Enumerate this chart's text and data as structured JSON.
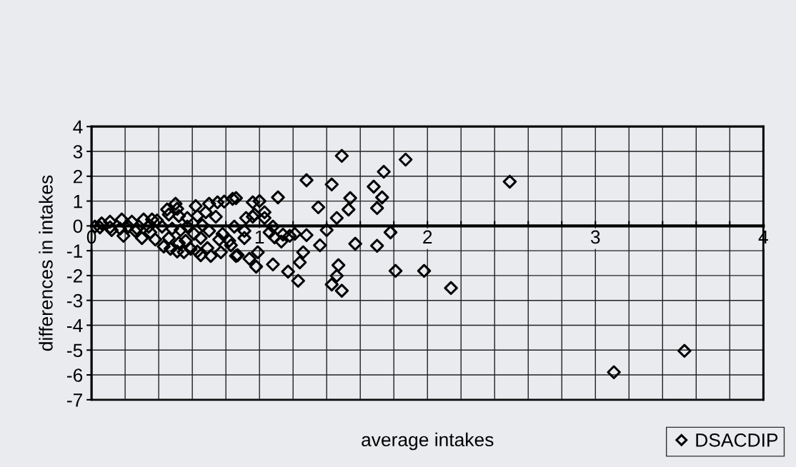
{
  "chart_data": {
    "type": "scatter",
    "xlabel": "average intakes",
    "ylabel": "differences in intakes",
    "xlim": [
      0,
      4
    ],
    "xticks": [
      0,
      {
        "value": 0.2,
        "label": null
      },
      {
        "value": 0.4,
        "label": null
      },
      {
        "value": 0.6,
        "label": null
      },
      {
        "value": 0.8,
        "label": null
      },
      1,
      {
        "value": 1.2,
        "label": null
      },
      {
        "value": 1.4,
        "label": null
      },
      {
        "value": 1.6,
        "label": null
      },
      {
        "value": 1.8,
        "label": null
      },
      2,
      {
        "value": 2.2,
        "label": null
      },
      {
        "value": 2.4,
        "label": null
      },
      {
        "value": 2.6,
        "label": null
      },
      {
        "value": 2.8,
        "label": null
      },
      3,
      {
        "value": 3.2,
        "label": null
      },
      {
        "value": 3.4,
        "label": null
      },
      {
        "value": 3.6,
        "label": null
      },
      {
        "value": 3.8,
        "label": null
      },
      4
    ],
    "ylim": [
      -7,
      4
    ],
    "yticks": [
      -7,
      -6,
      -5,
      -4,
      -3,
      -2,
      -1,
      0,
      1,
      2,
      3,
      4
    ],
    "grid": true,
    "legend": "bottom right",
    "marker": "diamond",
    "series": [
      {
        "name": "DSACDIP",
        "color": "#000000",
        "x": [
          2.49,
          3.11,
          3.53,
          1.98,
          2.14,
          1.87,
          1.49,
          1.74,
          1.28,
          1.43,
          1.68,
          1.11,
          1.54,
          1.73,
          0.96,
          1.0,
          1.35,
          1.53,
          1.7,
          1.03,
          0.92,
          0.96,
          1.03,
          1.46,
          1.08,
          1.4,
          1.78,
          0.91,
          1.06,
          1.09,
          1.14,
          1.13,
          1.18,
          1.21,
          1.28,
          0.91,
          1.36,
          1.57,
          1.7,
          0.87,
          0.94,
          0.99,
          0.98,
          1.08,
          1.26,
          1.24,
          1.17,
          1.23,
          1.47,
          1.46,
          1.43,
          1.49,
          1.81,
          0.86,
          0.02,
          0.06,
          0.11,
          0.18,
          0.24,
          0.31,
          0.36,
          0.39,
          0.45,
          0.5,
          0.51,
          0.46,
          0.52,
          0.62,
          0.7,
          0.75,
          0.79,
          0.84,
          0.68,
          0.74,
          0.63,
          0.57,
          0.97,
          0.57,
          0.66,
          0.7,
          0.85,
          0.53,
          0.48,
          0.42,
          0.34,
          0.27,
          0.22,
          0.17,
          0.11,
          0.05,
          0.12,
          0.19,
          0.26,
          0.3,
          0.38,
          0.43,
          0.47,
          0.52,
          0.51,
          0.55,
          0.59,
          0.56,
          0.63,
          0.65,
          0.69,
          0.71,
          0.77,
          0.78,
          0.76,
          0.82,
          0.86,
          0.83,
          0.65,
          0.61,
          0.46,
          0.35
        ],
        "values": [
          1.78,
          -5.89,
          -5.03,
          -1.81,
          -2.5,
          2.67,
          2.82,
          2.18,
          1.84,
          1.67,
          1.58,
          1.15,
          1.12,
          1.15,
          0.95,
          1.0,
          0.75,
          0.66,
          0.72,
          0.55,
          0.32,
          0.37,
          0.32,
          0.32,
          -0.03,
          -0.17,
          -0.26,
          -0.2,
          -0.26,
          -0.46,
          -0.35,
          -0.63,
          -0.4,
          -0.32,
          -0.37,
          -0.49,
          -0.78,
          -0.72,
          -0.8,
          -1.18,
          -1.32,
          -1.06,
          -1.64,
          -1.55,
          -1.06,
          -1.47,
          -1.84,
          -2.21,
          -1.58,
          -2.01,
          -2.36,
          -2.61,
          -1.81,
          1.12,
          -0.03,
          0.1,
          0.17,
          0.26,
          0.17,
          0.26,
          0.26,
          0.22,
          0.66,
          0.89,
          0.69,
          0.46,
          0.4,
          0.8,
          0.89,
          0.95,
          0.98,
          1.09,
          0.55,
          0.37,
          0.4,
          0.32,
          0.46,
          -0.03,
          0.03,
          -0.2,
          -0.03,
          -0.17,
          -0.11,
          -0.03,
          -0.03,
          -0.11,
          -0.03,
          -0.11,
          -0.06,
          -0.06,
          -0.17,
          -0.4,
          -0.2,
          -0.49,
          -0.55,
          -0.83,
          -0.92,
          -0.69,
          -1.03,
          -1.06,
          -0.92,
          -0.6,
          -1.03,
          -1.18,
          -0.89,
          -1.21,
          -1.06,
          -0.32,
          -0.55,
          -0.6,
          -1.21,
          -0.78,
          -0.49,
          -0.32,
          -0.49,
          -0.26
        ]
      }
    ]
  }
}
